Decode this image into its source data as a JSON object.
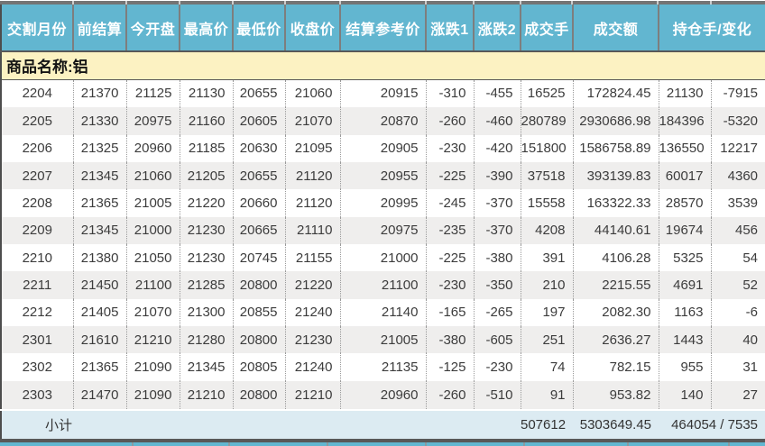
{
  "table": {
    "columns": [
      "交割月份",
      "前结算",
      "今开盘",
      "最高价",
      "最低价",
      "收盘价",
      "结算参考价",
      "涨跌1",
      "涨跌2",
      "成交手",
      "成交额",
      "持仓手/变化"
    ],
    "commodity_label": "商品名称:铝",
    "rows": [
      [
        "2204",
        "21370",
        "21125",
        "21130",
        "20655",
        "21060",
        "20915",
        "-310",
        "-455",
        "16525",
        "172824.45",
        "21130",
        "-7915"
      ],
      [
        "2205",
        "21330",
        "20975",
        "21160",
        "20605",
        "21070",
        "20870",
        "-260",
        "-460",
        "280789",
        "2930686.98",
        "184396",
        "-5320"
      ],
      [
        "2206",
        "21325",
        "20960",
        "21185",
        "20630",
        "21095",
        "20905",
        "-230",
        "-420",
        "151800",
        "1586758.89",
        "136550",
        "12217"
      ],
      [
        "2207",
        "21345",
        "21060",
        "21205",
        "20655",
        "21120",
        "20955",
        "-225",
        "-390",
        "37518",
        "393139.83",
        "60017",
        "4360"
      ],
      [
        "2208",
        "21365",
        "21005",
        "21220",
        "20660",
        "21120",
        "20995",
        "-245",
        "-370",
        "15558",
        "163322.33",
        "28570",
        "3539"
      ],
      [
        "2209",
        "21345",
        "21000",
        "21230",
        "20665",
        "21110",
        "20975",
        "-235",
        "-370",
        "4208",
        "44140.61",
        "19674",
        "456"
      ],
      [
        "2210",
        "21380",
        "21050",
        "21230",
        "20745",
        "21155",
        "21000",
        "-225",
        "-380",
        "391",
        "4106.28",
        "5325",
        "54"
      ],
      [
        "2211",
        "21450",
        "21100",
        "21285",
        "20800",
        "21220",
        "21100",
        "-230",
        "-350",
        "210",
        "2215.55",
        "4691",
        "52"
      ],
      [
        "2212",
        "21405",
        "21070",
        "21300",
        "20855",
        "21240",
        "21140",
        "-165",
        "-265",
        "197",
        "2082.30",
        "1163",
        "-6"
      ],
      [
        "2301",
        "21610",
        "21210",
        "21280",
        "20800",
        "21230",
        "21005",
        "-380",
        "-605",
        "251",
        "2636.27",
        "1443",
        "40"
      ],
      [
        "2302",
        "21365",
        "21090",
        "21345",
        "20805",
        "21240",
        "21135",
        "-125",
        "-230",
        "74",
        "782.15",
        "955",
        "31"
      ],
      [
        "2303",
        "21470",
        "21090",
        "21210",
        "20800",
        "21210",
        "20960",
        "-260",
        "-510",
        "91",
        "953.82",
        "140",
        "27"
      ]
    ],
    "subtotal": {
      "label": "小计",
      "volume": "507612",
      "turnover": "5303649.45",
      "open_interest_change": "464054 / 7535"
    }
  },
  "colors": {
    "header_bg": "#62b6d0",
    "commodity_bg": "#fcf2c2",
    "alt_row_bg": "#efeeed",
    "subtotal_bg": "#dcebf2",
    "grid_dark": "#585858",
    "text": "#3c3c3c"
  }
}
